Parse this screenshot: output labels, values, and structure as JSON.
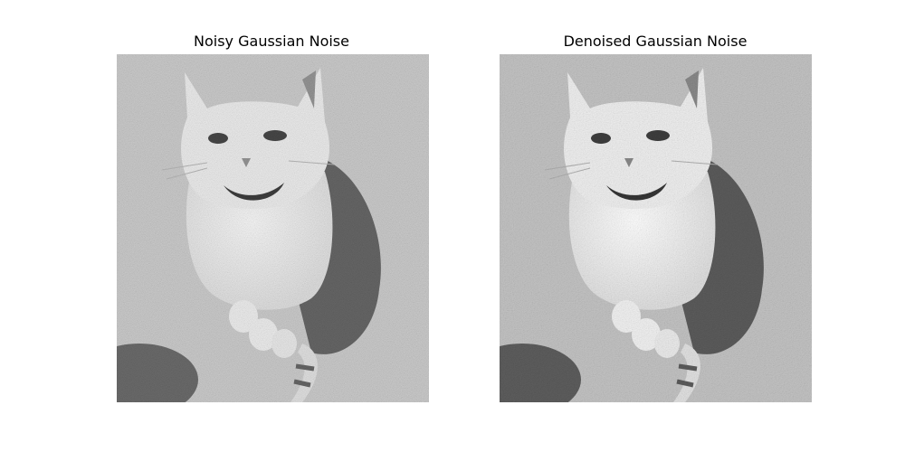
{
  "panels": [
    {
      "title": "Noisy Gaussian Noise"
    },
    {
      "title": "Denoised Gaussian Noise"
    }
  ]
}
